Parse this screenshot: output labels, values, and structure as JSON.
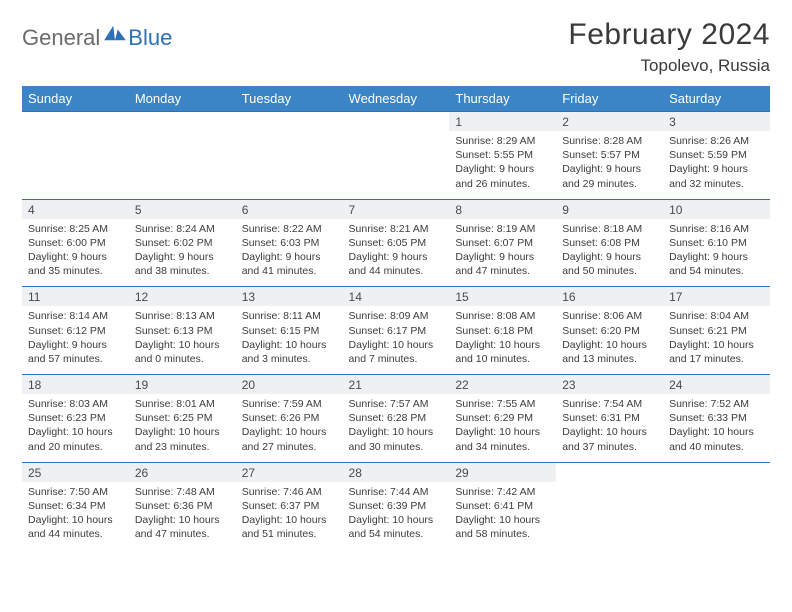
{
  "logo": {
    "text1": "General",
    "text2": "Blue"
  },
  "title": "February 2024",
  "location": "Topolevo, Russia",
  "colors": {
    "header_bg": "#3b85c6",
    "header_text": "#ffffff",
    "band_bg": "#eef0f2",
    "band_border": "#2f6fb3",
    "body_text": "#3c3c3c",
    "logo_gray": "#6b6b6b",
    "logo_blue": "#2f6fb3"
  },
  "day_names": [
    "Sunday",
    "Monday",
    "Tuesday",
    "Wednesday",
    "Thursday",
    "Friday",
    "Saturday"
  ],
  "weeks": [
    [
      {
        "day": "",
        "lines": [
          "",
          "",
          "",
          ""
        ]
      },
      {
        "day": "",
        "lines": [
          "",
          "",
          "",
          ""
        ]
      },
      {
        "day": "",
        "lines": [
          "",
          "",
          "",
          ""
        ]
      },
      {
        "day": "",
        "lines": [
          "",
          "",
          "",
          ""
        ]
      },
      {
        "day": "1",
        "lines": [
          "Sunrise: 8:29 AM",
          "Sunset: 5:55 PM",
          "Daylight: 9 hours",
          "and 26 minutes."
        ]
      },
      {
        "day": "2",
        "lines": [
          "Sunrise: 8:28 AM",
          "Sunset: 5:57 PM",
          "Daylight: 9 hours",
          "and 29 minutes."
        ]
      },
      {
        "day": "3",
        "lines": [
          "Sunrise: 8:26 AM",
          "Sunset: 5:59 PM",
          "Daylight: 9 hours",
          "and 32 minutes."
        ]
      }
    ],
    [
      {
        "day": "4",
        "lines": [
          "Sunrise: 8:25 AM",
          "Sunset: 6:00 PM",
          "Daylight: 9 hours",
          "and 35 minutes."
        ]
      },
      {
        "day": "5",
        "lines": [
          "Sunrise: 8:24 AM",
          "Sunset: 6:02 PM",
          "Daylight: 9 hours",
          "and 38 minutes."
        ]
      },
      {
        "day": "6",
        "lines": [
          "Sunrise: 8:22 AM",
          "Sunset: 6:03 PM",
          "Daylight: 9 hours",
          "and 41 minutes."
        ]
      },
      {
        "day": "7",
        "lines": [
          "Sunrise: 8:21 AM",
          "Sunset: 6:05 PM",
          "Daylight: 9 hours",
          "and 44 minutes."
        ]
      },
      {
        "day": "8",
        "lines": [
          "Sunrise: 8:19 AM",
          "Sunset: 6:07 PM",
          "Daylight: 9 hours",
          "and 47 minutes."
        ]
      },
      {
        "day": "9",
        "lines": [
          "Sunrise: 8:18 AM",
          "Sunset: 6:08 PM",
          "Daylight: 9 hours",
          "and 50 minutes."
        ]
      },
      {
        "day": "10",
        "lines": [
          "Sunrise: 8:16 AM",
          "Sunset: 6:10 PM",
          "Daylight: 9 hours",
          "and 54 minutes."
        ]
      }
    ],
    [
      {
        "day": "11",
        "lines": [
          "Sunrise: 8:14 AM",
          "Sunset: 6:12 PM",
          "Daylight: 9 hours",
          "and 57 minutes."
        ]
      },
      {
        "day": "12",
        "lines": [
          "Sunrise: 8:13 AM",
          "Sunset: 6:13 PM",
          "Daylight: 10 hours",
          "and 0 minutes."
        ]
      },
      {
        "day": "13",
        "lines": [
          "Sunrise: 8:11 AM",
          "Sunset: 6:15 PM",
          "Daylight: 10 hours",
          "and 3 minutes."
        ]
      },
      {
        "day": "14",
        "lines": [
          "Sunrise: 8:09 AM",
          "Sunset: 6:17 PM",
          "Daylight: 10 hours",
          "and 7 minutes."
        ]
      },
      {
        "day": "15",
        "lines": [
          "Sunrise: 8:08 AM",
          "Sunset: 6:18 PM",
          "Daylight: 10 hours",
          "and 10 minutes."
        ]
      },
      {
        "day": "16",
        "lines": [
          "Sunrise: 8:06 AM",
          "Sunset: 6:20 PM",
          "Daylight: 10 hours",
          "and 13 minutes."
        ]
      },
      {
        "day": "17",
        "lines": [
          "Sunrise: 8:04 AM",
          "Sunset: 6:21 PM",
          "Daylight: 10 hours",
          "and 17 minutes."
        ]
      }
    ],
    [
      {
        "day": "18",
        "lines": [
          "Sunrise: 8:03 AM",
          "Sunset: 6:23 PM",
          "Daylight: 10 hours",
          "and 20 minutes."
        ]
      },
      {
        "day": "19",
        "lines": [
          "Sunrise: 8:01 AM",
          "Sunset: 6:25 PM",
          "Daylight: 10 hours",
          "and 23 minutes."
        ]
      },
      {
        "day": "20",
        "lines": [
          "Sunrise: 7:59 AM",
          "Sunset: 6:26 PM",
          "Daylight: 10 hours",
          "and 27 minutes."
        ]
      },
      {
        "day": "21",
        "lines": [
          "Sunrise: 7:57 AM",
          "Sunset: 6:28 PM",
          "Daylight: 10 hours",
          "and 30 minutes."
        ]
      },
      {
        "day": "22",
        "lines": [
          "Sunrise: 7:55 AM",
          "Sunset: 6:29 PM",
          "Daylight: 10 hours",
          "and 34 minutes."
        ]
      },
      {
        "day": "23",
        "lines": [
          "Sunrise: 7:54 AM",
          "Sunset: 6:31 PM",
          "Daylight: 10 hours",
          "and 37 minutes."
        ]
      },
      {
        "day": "24",
        "lines": [
          "Sunrise: 7:52 AM",
          "Sunset: 6:33 PM",
          "Daylight: 10 hours",
          "and 40 minutes."
        ]
      }
    ],
    [
      {
        "day": "25",
        "lines": [
          "Sunrise: 7:50 AM",
          "Sunset: 6:34 PM",
          "Daylight: 10 hours",
          "and 44 minutes."
        ]
      },
      {
        "day": "26",
        "lines": [
          "Sunrise: 7:48 AM",
          "Sunset: 6:36 PM",
          "Daylight: 10 hours",
          "and 47 minutes."
        ]
      },
      {
        "day": "27",
        "lines": [
          "Sunrise: 7:46 AM",
          "Sunset: 6:37 PM",
          "Daylight: 10 hours",
          "and 51 minutes."
        ]
      },
      {
        "day": "28",
        "lines": [
          "Sunrise: 7:44 AM",
          "Sunset: 6:39 PM",
          "Daylight: 10 hours",
          "and 54 minutes."
        ]
      },
      {
        "day": "29",
        "lines": [
          "Sunrise: 7:42 AM",
          "Sunset: 6:41 PM",
          "Daylight: 10 hours",
          "and 58 minutes."
        ]
      },
      {
        "day": "",
        "lines": [
          "",
          "",
          "",
          ""
        ]
      },
      {
        "day": "",
        "lines": [
          "",
          "",
          "",
          ""
        ]
      }
    ]
  ]
}
